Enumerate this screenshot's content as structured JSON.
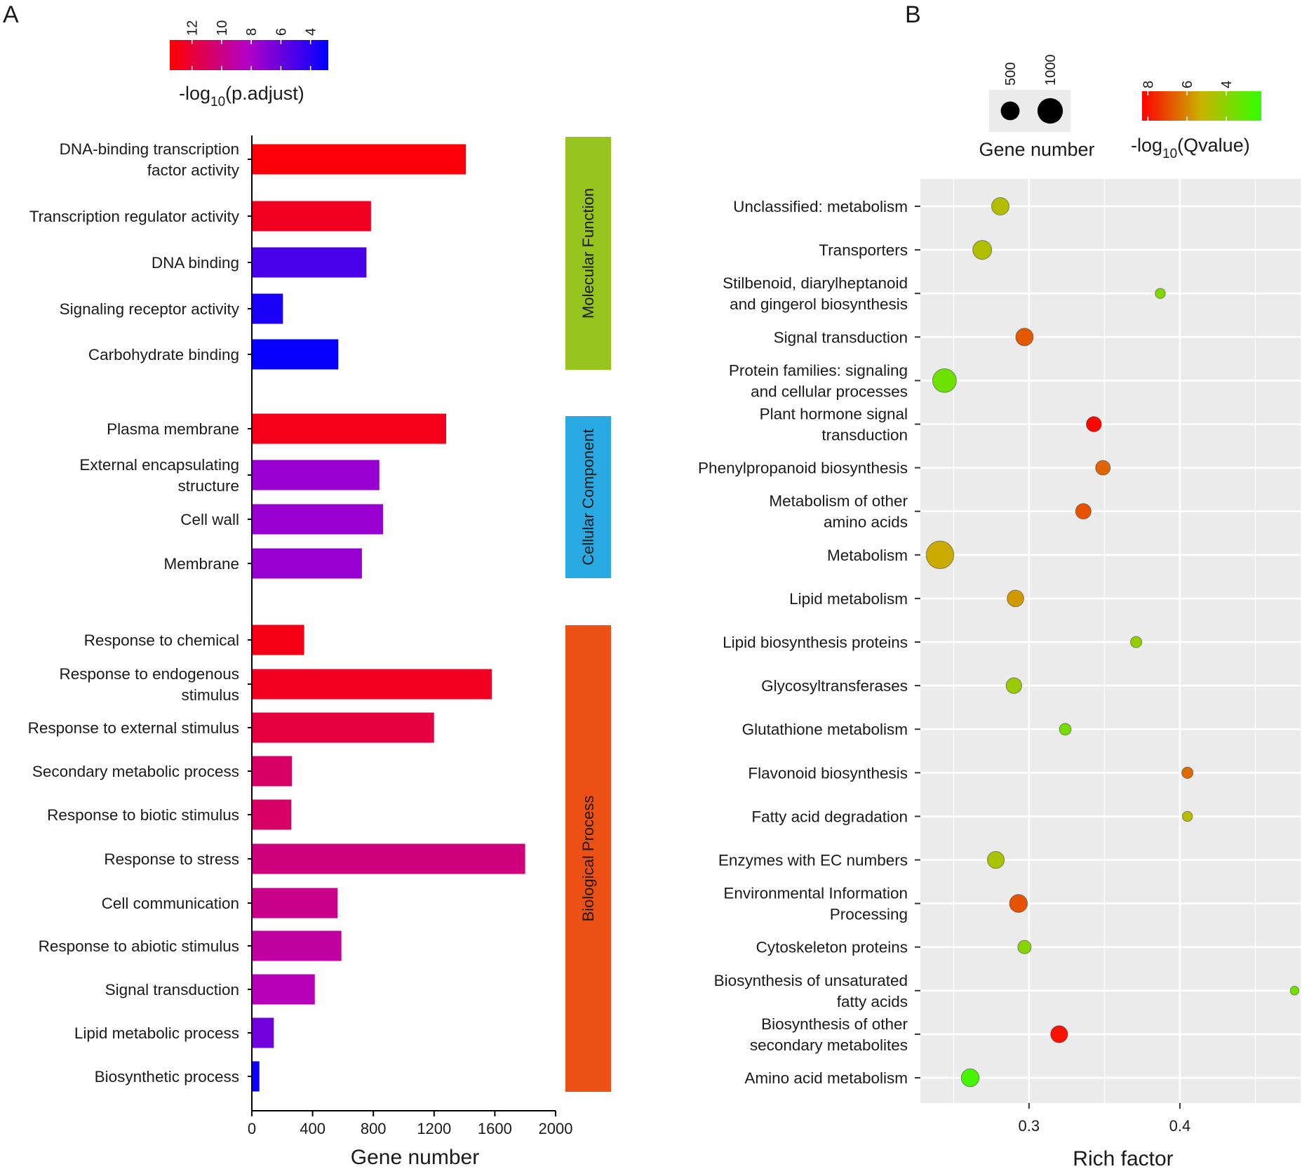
{
  "panelA": {
    "letter": "A",
    "legend": {
      "title_main": "-log",
      "title_sub": "10",
      "title_end": "(p.adjust)",
      "ticks": [
        "12",
        "10",
        "8",
        "6",
        "4"
      ],
      "tick_values": [
        12,
        10,
        8,
        6,
        4
      ],
      "range": [
        2.8,
        13.5
      ],
      "colors": {
        "high": "#ff0000",
        "mid": "#b000c8",
        "low": "#0000ff"
      }
    },
    "side_bars": [
      {
        "label": "Molecular Function",
        "color": "#96c31e"
      },
      {
        "label": "Cellular Component",
        "color": "#29a9e1"
      },
      {
        "label": "Biological Process",
        "color": "#ec5014"
      }
    ]
  },
  "panelB": {
    "letter": "B",
    "size_legend": {
      "title": "Gene number",
      "ticks": [
        "500",
        "1000"
      ],
      "values": [
        500,
        1000
      ]
    },
    "color_legend": {
      "title_main": "-log",
      "title_sub": "10",
      "title_end": "(Qvalue)",
      "ticks": [
        "8",
        "6",
        "4"
      ],
      "tick_values": [
        8,
        6,
        4
      ],
      "range": [
        2.2,
        8.3
      ],
      "colors": {
        "high": "#ff0000",
        "mid": "#c8b400",
        "low": "#32ff00"
      }
    }
  },
  "chart_data": [
    {
      "type": "bar",
      "orientation": "horizontal",
      "title": "",
      "xlabel": "Gene number",
      "ylabel": "",
      "xlim": [
        0,
        2000
      ],
      "xticks": [
        "0",
        "400",
        "800",
        "1200",
        "1600",
        "2000"
      ],
      "xtick_values": [
        0,
        400,
        800,
        1200,
        1600,
        2000
      ],
      "color_by": "-log10(p.adjust)",
      "groups": [
        {
          "name": "Molecular Function",
          "categories": [
            {
              "label": [
                "DNA-binding transcription",
                "factor activity"
              ],
              "value": 1405,
              "neglog10_padj": 13.2
            },
            {
              "label": [
                "Transcription regulator activity"
              ],
              "value": 780,
              "neglog10_padj": 12.6
            },
            {
              "label": [
                "DNA binding"
              ],
              "value": 750,
              "neglog10_padj": 5.0
            },
            {
              "label": [
                "Signaling receptor activity"
              ],
              "value": 200,
              "neglog10_padj": 3.6
            },
            {
              "label": [
                "Carbohydrate binding"
              ],
              "value": 565,
              "neglog10_padj": 3.0
            }
          ]
        },
        {
          "name": "Cellular Component",
          "categories": [
            {
              "label": [
                "Plasma membrane"
              ],
              "value": 1275,
              "neglog10_padj": 12.8
            },
            {
              "label": [
                "External encapsulating",
                "structure"
              ],
              "value": 835,
              "neglog10_padj": 7.4
            },
            {
              "label": [
                "Cell wall"
              ],
              "value": 860,
              "neglog10_padj": 7.4
            },
            {
              "label": [
                "Membrane"
              ],
              "value": 720,
              "neglog10_padj": 7.4
            }
          ]
        },
        {
          "name": "Biological Process",
          "categories": [
            {
              "label": [
                "Response to chemical"
              ],
              "value": 340,
              "neglog10_padj": 12.9
            },
            {
              "label": [
                "Response to endogenous",
                "stimulus"
              ],
              "value": 1575,
              "neglog10_padj": 12.6
            },
            {
              "label": [
                "Response to external stimulus"
              ],
              "value": 1195,
              "neglog10_padj": 11.8
            },
            {
              "label": [
                "Secondary metabolic process"
              ],
              "value": 260,
              "neglog10_padj": 10.8
            },
            {
              "label": [
                "Response to biotic stimulus"
              ],
              "value": 255,
              "neglog10_padj": 10.8
            },
            {
              "label": [
                "Response to stress"
              ],
              "value": 1795,
              "neglog10_padj": 10.2
            },
            {
              "label": [
                "Cell communication"
              ],
              "value": 560,
              "neglog10_padj": 9.8
            },
            {
              "label": [
                "Response to abiotic stimulus"
              ],
              "value": 585,
              "neglog10_padj": 9.2
            },
            {
              "label": [
                "Signal transduction"
              ],
              "value": 410,
              "neglog10_padj": 8.6
            },
            {
              "label": [
                "Lipid metabolic process"
              ],
              "value": 140,
              "neglog10_padj": 6.2
            },
            {
              "label": [
                "Biosynthetic process"
              ],
              "value": 45,
              "neglog10_padj": 3.2
            }
          ]
        }
      ]
    },
    {
      "type": "scatter",
      "title": "",
      "xlabel": "Rich factor",
      "ylabel": "",
      "xlim": [
        0.228,
        0.48
      ],
      "xticks": [
        "0.3",
        "0.4"
      ],
      "xtick_values": [
        0.3,
        0.4
      ],
      "grid": true,
      "size_by": "Gene number",
      "color_by": "-log10(Qvalue)",
      "points": [
        {
          "label": [
            "Unclassified: metabolism"
          ],
          "x": 0.281,
          "genes": 600,
          "neglog10_q": 4.8
        },
        {
          "label": [
            "Transporters"
          ],
          "x": 0.269,
          "genes": 700,
          "neglog10_q": 4.8
        },
        {
          "label": [
            "Stilbenoid, diarylheptanoid",
            "and gingerol biosynthesis"
          ],
          "x": 0.387,
          "genes": 200,
          "neglog10_q": 3.8
        },
        {
          "label": [
            "Signal transduction"
          ],
          "x": 0.297,
          "genes": 600,
          "neglog10_q": 6.8
        },
        {
          "label": [
            "Protein families: signaling",
            "and cellular processes"
          ],
          "x": 0.244,
          "genes": 1100,
          "neglog10_q": 3.4
        },
        {
          "label": [
            "Plant hormone signal",
            "transduction"
          ],
          "x": 0.343,
          "genes": 450,
          "neglog10_q": 8.2
        },
        {
          "label": [
            "Phenylpropanoid biosynthesis"
          ],
          "x": 0.349,
          "genes": 420,
          "neglog10_q": 6.6
        },
        {
          "label": [
            "Metabolism of other",
            "amino acids"
          ],
          "x": 0.336,
          "genes": 470,
          "neglog10_q": 6.9
        },
        {
          "label": [
            "Metabolism"
          ],
          "x": 0.241,
          "genes": 1500,
          "neglog10_q": 5.4
        },
        {
          "label": [
            "Lipid metabolism"
          ],
          "x": 0.291,
          "genes": 540,
          "neglog10_q": 5.7
        },
        {
          "label": [
            "Lipid biosynthesis proteins"
          ],
          "x": 0.371,
          "genes": 250,
          "neglog10_q": 4.2
        },
        {
          "label": [
            "Glycosyltransferases"
          ],
          "x": 0.29,
          "genes": 480,
          "neglog10_q": 4.3
        },
        {
          "label": [
            "Glutathione metabolism"
          ],
          "x": 0.324,
          "genes": 270,
          "neglog10_q": 3.6
        },
        {
          "label": [
            "Flavonoid biosynthesis"
          ],
          "x": 0.405,
          "genes": 250,
          "neglog10_q": 6.5
        },
        {
          "label": [
            "Fatty acid degradation"
          ],
          "x": 0.405,
          "genes": 200,
          "neglog10_q": 4.9
        },
        {
          "label": [
            "Enzymes with EC numbers"
          ],
          "x": 0.278,
          "genes": 560,
          "neglog10_q": 4.6
        },
        {
          "label": [
            "Environmental Information",
            "Processing"
          ],
          "x": 0.293,
          "genes": 630,
          "neglog10_q": 6.9
        },
        {
          "label": [
            "Cytoskeleton proteins"
          ],
          "x": 0.297,
          "genes": 350,
          "neglog10_q": 3.9
        },
        {
          "label": [
            "Biosynthesis of unsaturated",
            "fatty acids"
          ],
          "x": 0.476,
          "genes": 150,
          "neglog10_q": 3.5
        },
        {
          "label": [
            "Biosynthesis of other",
            "secondary metabolites"
          ],
          "x": 0.32,
          "genes": 570,
          "neglog10_q": 8.0
        },
        {
          "label": [
            "Amino acid metabolism"
          ],
          "x": 0.261,
          "genes": 620,
          "neglog10_q": 2.6
        }
      ]
    }
  ]
}
